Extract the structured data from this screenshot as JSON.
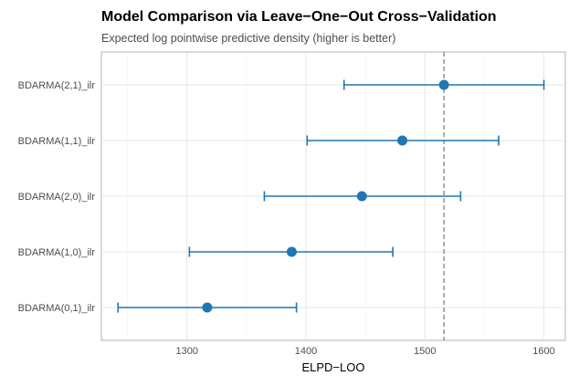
{
  "chart_data": {
    "type": "scatter",
    "title": "Model Comparison via Leave−One−Out Cross−Validation",
    "subtitle": "Expected log pointwise predictive density (higher is better)",
    "xlabel": "ELPD−LOO",
    "ylabel": "",
    "xlim": [
      1228,
      1618
    ],
    "xticks": [
      1300,
      1400,
      1500,
      1600
    ],
    "grid": true,
    "reference_line": {
      "x": 1516,
      "style": "dashed"
    },
    "color": "#1f77b4",
    "models": [
      {
        "label": "BDARMA(2,1)_ilr",
        "estimate": 1516,
        "lower": 1432,
        "upper": 1600
      },
      {
        "label": "BDARMA(1,1)_ilr",
        "estimate": 1481,
        "lower": 1401,
        "upper": 1562
      },
      {
        "label": "BDARMA(2,0)_ilr",
        "estimate": 1447,
        "lower": 1365,
        "upper": 1530
      },
      {
        "label": "BDARMA(1,0)_ilr",
        "estimate": 1388,
        "lower": 1302,
        "upper": 1473
      },
      {
        "label": "BDARMA(0,1)_ilr",
        "estimate": 1317,
        "lower": 1242,
        "upper": 1392
      }
    ]
  }
}
